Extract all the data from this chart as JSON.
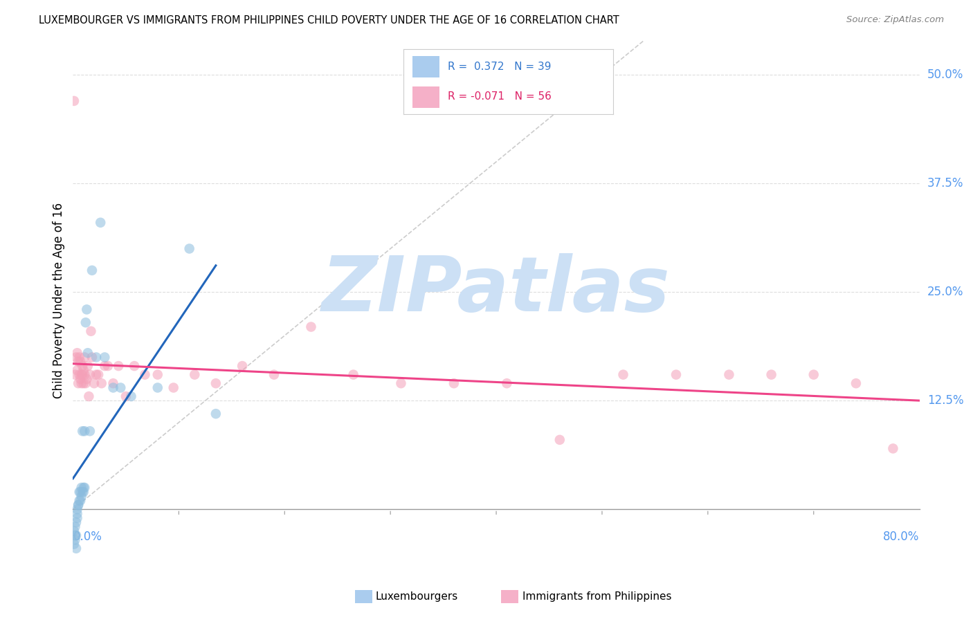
{
  "title": "LUXEMBOURGER VS IMMIGRANTS FROM PHILIPPINES CHILD POVERTY UNDER THE AGE OF 16 CORRELATION CHART",
  "source": "Source: ZipAtlas.com",
  "ylabel": "Child Poverty Under the Age of 16",
  "ytick_labels": [
    "12.5%",
    "25.0%",
    "37.5%",
    "50.0%"
  ],
  "ytick_values": [
    0.125,
    0.25,
    0.375,
    0.5
  ],
  "xlim": [
    0.0,
    0.8
  ],
  "ylim": [
    -0.06,
    0.54
  ],
  "watermark": "ZIPatlas",
  "watermark_color": "#cce0f5",
  "blue_scatter_color": "#8bbcde",
  "pink_scatter_color": "#f4a0b8",
  "blue_line_color": "#2266bb",
  "pink_line_color": "#ee4488",
  "diagonal_color": "#cccccc",
  "grid_color": "#dddddd",
  "lux_x": [
    0.001,
    0.001,
    0.002,
    0.002,
    0.002,
    0.003,
    0.003,
    0.003,
    0.004,
    0.004,
    0.004,
    0.005,
    0.005,
    0.006,
    0.006,
    0.007,
    0.007,
    0.008,
    0.008,
    0.009,
    0.009,
    0.01,
    0.01,
    0.011,
    0.011,
    0.012,
    0.013,
    0.014,
    0.016,
    0.018,
    0.022,
    0.026,
    0.03,
    0.038,
    0.045,
    0.055,
    0.08,
    0.11,
    0.135
  ],
  "lux_y": [
    -0.04,
    -0.025,
    -0.035,
    -0.03,
    -0.02,
    -0.045,
    -0.03,
    -0.015,
    -0.01,
    -0.005,
    0.0,
    0.005,
    0.005,
    0.01,
    0.02,
    0.01,
    0.02,
    0.015,
    0.025,
    0.02,
    0.09,
    0.02,
    0.025,
    0.025,
    0.09,
    0.215,
    0.23,
    0.18,
    0.09,
    0.275,
    0.175,
    0.33,
    0.175,
    0.14,
    0.14,
    0.13,
    0.14,
    0.3,
    0.11
  ],
  "phil_x": [
    0.001,
    0.002,
    0.003,
    0.004,
    0.004,
    0.005,
    0.005,
    0.006,
    0.006,
    0.007,
    0.007,
    0.008,
    0.008,
    0.009,
    0.009,
    0.01,
    0.01,
    0.011,
    0.011,
    0.012,
    0.013,
    0.014,
    0.015,
    0.016,
    0.017,
    0.018,
    0.02,
    0.022,
    0.024,
    0.027,
    0.03,
    0.033,
    0.038,
    0.043,
    0.05,
    0.058,
    0.068,
    0.08,
    0.095,
    0.115,
    0.135,
    0.16,
    0.19,
    0.225,
    0.265,
    0.31,
    0.36,
    0.41,
    0.46,
    0.52,
    0.57,
    0.62,
    0.66,
    0.7,
    0.74,
    0.775
  ],
  "phil_y": [
    0.47,
    0.155,
    0.175,
    0.16,
    0.18,
    0.145,
    0.17,
    0.155,
    0.175,
    0.15,
    0.17,
    0.145,
    0.155,
    0.155,
    0.165,
    0.145,
    0.16,
    0.155,
    0.175,
    0.145,
    0.15,
    0.165,
    0.13,
    0.155,
    0.205,
    0.175,
    0.145,
    0.155,
    0.155,
    0.145,
    0.165,
    0.165,
    0.145,
    0.165,
    0.13,
    0.165,
    0.155,
    0.155,
    0.14,
    0.155,
    0.145,
    0.165,
    0.155,
    0.21,
    0.155,
    0.145,
    0.145,
    0.145,
    0.08,
    0.155,
    0.155,
    0.155,
    0.155,
    0.155,
    0.145,
    0.07
  ]
}
